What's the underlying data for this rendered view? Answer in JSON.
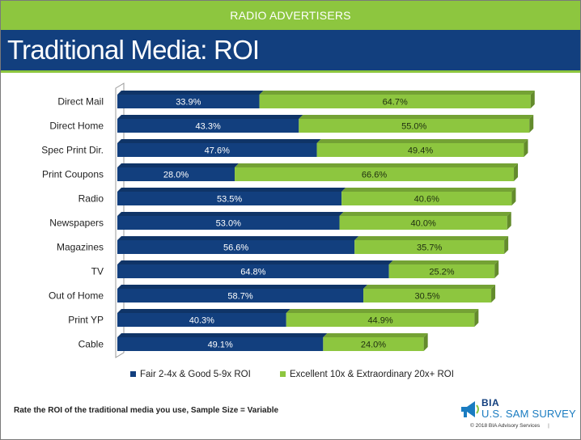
{
  "header": {
    "banner": "RADIO ADVERTISERS",
    "title": "Traditional Media: ROI"
  },
  "colors": {
    "fair_good": "#123f7e",
    "excellent": "#8dc63f",
    "banner": "#8dc63f",
    "title_bar": "#123f7e"
  },
  "chart_data": {
    "type": "bar",
    "orientation": "horizontal",
    "stacked": true,
    "categories": [
      "Direct Mail",
      "Direct Home",
      "Spec Print Dir.",
      "Print Coupons",
      "Radio",
      "Newspapers",
      "Magazines",
      "TV",
      "Out of Home",
      "Print YP",
      "Cable"
    ],
    "series": [
      {
        "name": "Fair 2-4x & Good 5-9x ROI",
        "values": [
          33.9,
          43.3,
          47.6,
          28.0,
          53.5,
          53.0,
          56.6,
          64.8,
          58.7,
          40.3,
          49.1
        ]
      },
      {
        "name": "Excellent 10x & Extraordinary 20x+ ROI",
        "values": [
          64.7,
          55.0,
          49.4,
          66.6,
          40.6,
          40.0,
          35.7,
          25.2,
          30.5,
          44.9,
          24.0
        ]
      }
    ],
    "value_suffix": "%",
    "xlim": [
      0,
      100
    ],
    "legend_position": "bottom",
    "grid": false
  },
  "footer": {
    "footnote": "Rate the ROI of the traditional media you use, Sample Size = Variable",
    "logo_top": "BIA",
    "logo_bottom": "U.S. SAM SURVEY",
    "copyright": "© 2018 BIA Advisory Services"
  }
}
